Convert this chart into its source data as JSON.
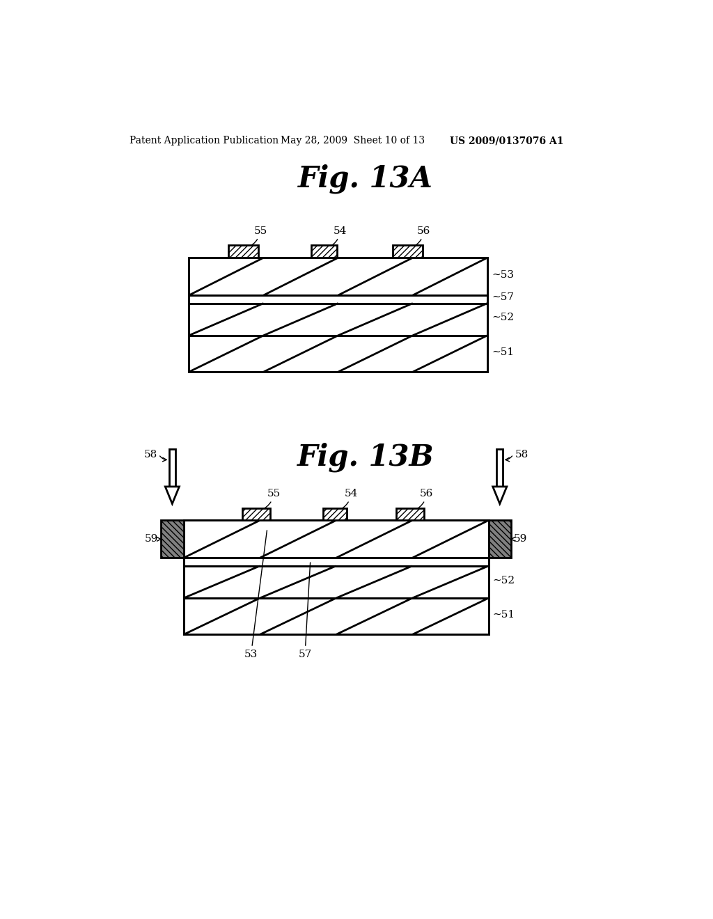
{
  "bg_color": "#ffffff",
  "header_left": "Patent Application Publication",
  "header_mid": "May 28, 2009  Sheet 10 of 13",
  "header_right": "US 2009/0137076 A1",
  "fig13A_title": "Fig. 13A",
  "fig13B_title": "Fig. 13B",
  "header_fontsize": 10,
  "title_fontsize": 30
}
